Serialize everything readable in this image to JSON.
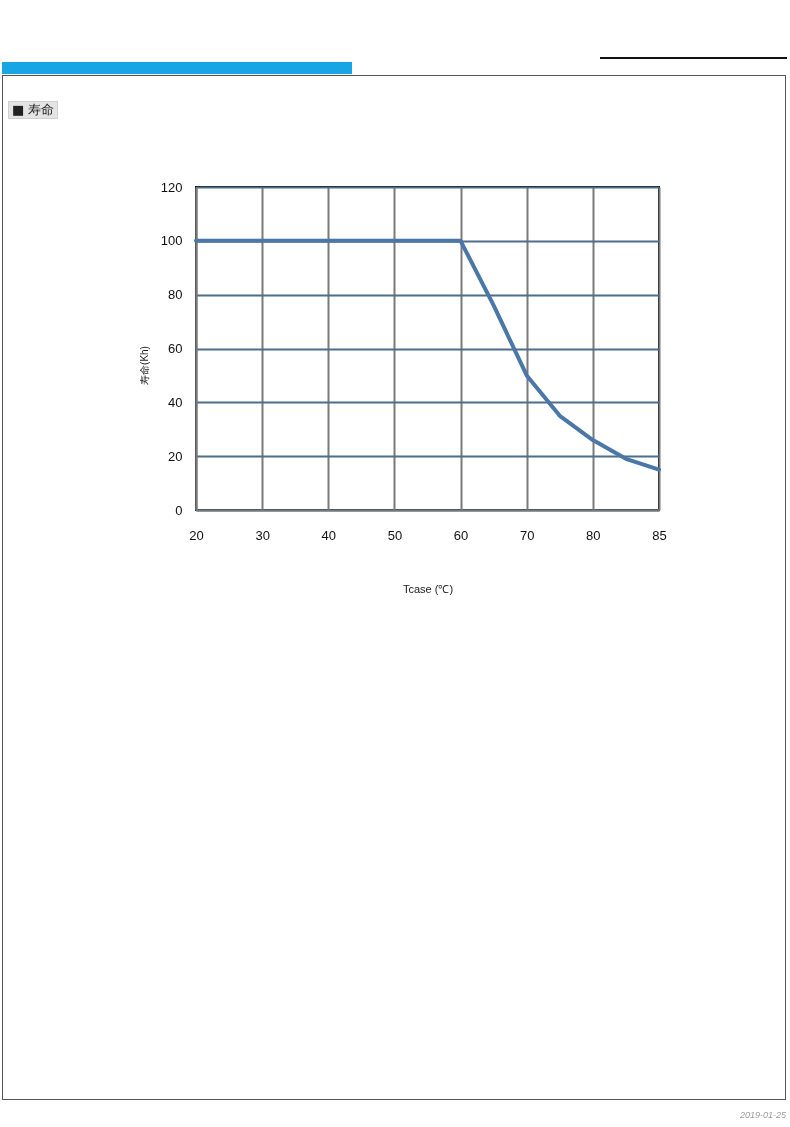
{
  "chart_data": {
    "type": "line",
    "title": "■ 寿命",
    "xlabel": "Tcase (℃)",
    "ylabel": "寿命(Kh)",
    "categories": [
      "20",
      null,
      "30",
      null,
      "40",
      null,
      "50",
      null,
      "60",
      null,
      "70",
      null,
      "80",
      null,
      "85"
    ],
    "series": [
      {
        "color": "#4a76a8",
        "values": [
          100,
          100,
          100,
          100,
          100,
          100,
          100,
          100,
          100,
          76,
          50,
          35,
          26,
          19,
          15
        ]
      }
    ],
    "ylim": [
      0,
      120
    ],
    "yticks": [
      0,
      20,
      40,
      60,
      80,
      100,
      120
    ],
    "grid": true,
    "marker": "none",
    "line_style": "solid",
    "annotations": [
      "2019-01-25"
    ]
  }
}
